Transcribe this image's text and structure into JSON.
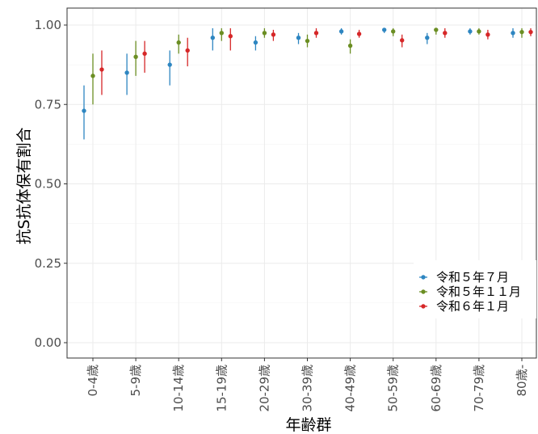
{
  "chart_data": {
    "type": "scatter",
    "xlabel": "年齢群",
    "ylabel": "抗S抗体保有割合",
    "ylim": [
      0,
      1
    ],
    "yticks": [
      "0.00",
      "0.25",
      "0.50",
      "0.75",
      "1.00"
    ],
    "categories": [
      "0-4歳",
      "5-9歳",
      "10-14歳",
      "15-19歳",
      "20-29歳",
      "30-39歳",
      "40-49歳",
      "50-59歳",
      "60-69歳",
      "70-79歳",
      "80歳-"
    ],
    "grid": true,
    "legend_position": "bottom-right",
    "series": [
      {
        "name": "令和５年７月",
        "color": "#2e86c1",
        "values": [
          0.73,
          0.85,
          0.875,
          0.96,
          0.945,
          0.96,
          0.98,
          0.985,
          0.96,
          0.98,
          0.975
        ],
        "lower": [
          0.64,
          0.78,
          0.81,
          0.92,
          0.92,
          0.94,
          0.97,
          0.975,
          0.94,
          0.97,
          0.96
        ],
        "upper": [
          0.81,
          0.91,
          0.92,
          0.99,
          0.965,
          0.975,
          0.99,
          0.99,
          0.975,
          0.99,
          0.99
        ]
      },
      {
        "name": "令和５年１１月",
        "color": "#6b8e23",
        "values": [
          0.84,
          0.9,
          0.945,
          0.975,
          0.975,
          0.95,
          0.935,
          0.98,
          0.985,
          0.98,
          0.978
        ],
        "lower": [
          0.75,
          0.84,
          0.91,
          0.95,
          0.96,
          0.93,
          0.91,
          0.965,
          0.97,
          0.97,
          0.96
        ],
        "upper": [
          0.91,
          0.95,
          0.97,
          0.99,
          0.99,
          0.97,
          0.955,
          0.99,
          0.99,
          0.99,
          0.99
        ]
      },
      {
        "name": "令和６年１月",
        "color": "#d62728",
        "values": [
          0.86,
          0.91,
          0.92,
          0.965,
          0.97,
          0.975,
          0.972,
          0.952,
          0.975,
          0.97,
          0.978
        ],
        "lower": [
          0.78,
          0.85,
          0.87,
          0.92,
          0.95,
          0.96,
          0.96,
          0.93,
          0.96,
          0.955,
          0.965
        ],
        "upper": [
          0.92,
          0.95,
          0.96,
          0.99,
          0.985,
          0.99,
          0.985,
          0.97,
          0.99,
          0.985,
          0.99
        ]
      }
    ]
  }
}
